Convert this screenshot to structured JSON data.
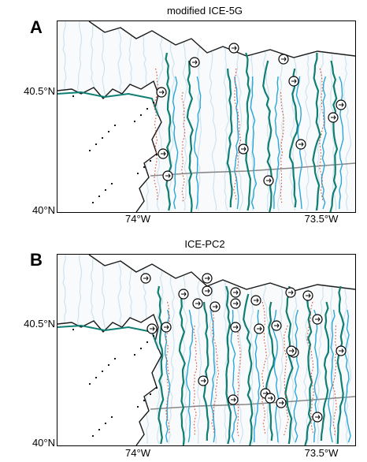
{
  "panels": [
    {
      "letter": "A",
      "title": "modified ICE-5G",
      "lat_labels": [
        "40.5°N",
        "40°N"
      ],
      "lon_labels": [
        "74°W",
        "73.5°W"
      ],
      "marker_count": 12
    },
    {
      "letter": "B",
      "title": "ICE-PC2",
      "lat_labels": [
        "40.5°N",
        "40°N"
      ],
      "lon_labels": [
        "74°W",
        "73.5°W"
      ],
      "marker_count": 26
    }
  ],
  "legend_semantics": {
    "coastline": "#1a1a1a",
    "major_channel": "#0f7f73",
    "minor_channel": "#2aa7d8",
    "faint_channel": "#cfe3f0",
    "dotted_divide": "#e0452a",
    "grey_boundary": "#888888"
  },
  "icons": [
    "flow-direction-arrow-icon"
  ]
}
